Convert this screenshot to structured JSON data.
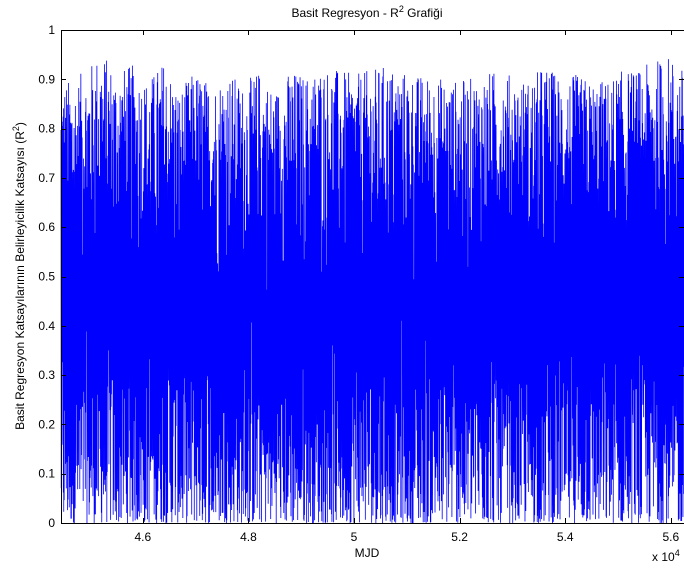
{
  "chart_data": {
    "type": "line",
    "title": {
      "text": "Basit Regresyon - R",
      "sup": "2",
      "after": " Grafiği"
    },
    "xlabel": "MJD",
    "ylabel": {
      "before": "Basit Regresyon Katsayılarının Belirleyicilik Katsayısı (R",
      "sup": "2",
      "after": ")"
    },
    "x_multiplier_label": {
      "text": "x 10",
      "sup": "4"
    },
    "xlim": [
      4.445,
      5.625
    ],
    "ylim": [
      0,
      1
    ],
    "xticks": [
      4.6,
      4.8,
      5.0,
      5.2,
      5.4,
      5.6
    ],
    "xtick_labels": [
      "4.6",
      "4.8",
      "5",
      "5.2",
      "5.4",
      "5.6"
    ],
    "yticks": [
      0,
      0.1,
      0.2,
      0.3,
      0.4,
      0.5,
      0.6,
      0.7,
      0.8,
      0.9,
      1
    ],
    "ytick_labels": [
      "0",
      "0.1",
      "0.2",
      "0.3",
      "0.4",
      "0.5",
      "0.6",
      "0.7",
      "0.8",
      "0.9",
      "1"
    ],
    "grid": false,
    "series": [
      {
        "color": "#0000ff",
        "x_step": 0.0004,
        "envelope": {
          "x": [
            4.445,
            4.47,
            4.5,
            4.52,
            4.55,
            4.58,
            4.61,
            4.64,
            4.67,
            4.7,
            4.73,
            4.76,
            4.79,
            4.82,
            4.85,
            4.88,
            4.91,
            4.94,
            4.97,
            5.0,
            5.03,
            5.06,
            5.09,
            5.12,
            5.15,
            5.18,
            5.21,
            5.24,
            5.27,
            5.3,
            5.33,
            5.36,
            5.39,
            5.42,
            5.45,
            5.48,
            5.51,
            5.54,
            5.57,
            5.6,
            5.625
          ],
          "max": [
            0.9,
            0.9,
            0.93,
            0.96,
            0.92,
            0.93,
            0.9,
            0.94,
            0.88,
            0.92,
            0.89,
            0.92,
            0.89,
            0.92,
            0.88,
            0.92,
            0.91,
            0.93,
            0.92,
            0.91,
            0.92,
            0.93,
            0.92,
            0.91,
            0.91,
            0.9,
            0.9,
            0.91,
            0.92,
            0.91,
            0.9,
            0.93,
            0.91,
            0.91,
            0.9,
            0.9,
            0.92,
            0.92,
            0.94,
            0.95,
            0.92
          ],
          "min": [
            0.0,
            0.0,
            0.0,
            0.0,
            0.0,
            0.0,
            0.0,
            0.0,
            0.0,
            0.0,
            0.0,
            0.0,
            0.0,
            0.0,
            0.0,
            0.0,
            0.0,
            0.0,
            0.0,
            0.0,
            0.0,
            0.0,
            0.0,
            0.0,
            0.0,
            0.0,
            0.0,
            0.0,
            0.0,
            0.0,
            0.0,
            0.0,
            0.0,
            0.0,
            0.0,
            0.0,
            0.0,
            0.0,
            0.0,
            0.0,
            0.0
          ]
        }
      }
    ]
  }
}
